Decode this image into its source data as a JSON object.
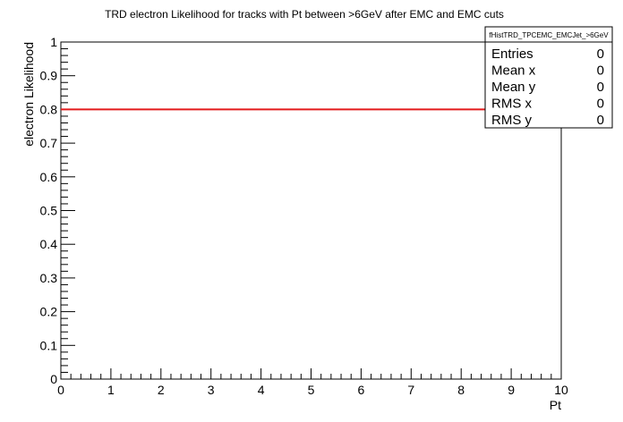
{
  "chart_data": {
    "type": "line",
    "title": "TRD electron Likelihood for tracks with Pt between >6GeV after EMC and EMC cuts",
    "xlabel": "Pt",
    "ylabel": "electron Likelihood",
    "xlim": [
      0,
      10
    ],
    "ylim": [
      0,
      1
    ],
    "x_ticks": [
      "0",
      "1",
      "2",
      "3",
      "4",
      "5",
      "6",
      "7",
      "8",
      "9",
      "10"
    ],
    "y_ticks": [
      "0",
      "0.1",
      "0.2",
      "0.3",
      "0.4",
      "0.5",
      "0.6",
      "0.7",
      "0.8",
      "0.9",
      "1"
    ],
    "grid": false,
    "series": [
      {
        "x": [
          0,
          10
        ],
        "y": [
          0.8,
          0.8
        ],
        "color": "#e31a1c"
      }
    ]
  },
  "stats_box": {
    "name": "fHistTRD_TPCEMC_EMCJet_>6GeV",
    "rows": [
      {
        "label": "Entries",
        "value": "0"
      },
      {
        "label": "Mean x",
        "value": "0"
      },
      {
        "label": "Mean y",
        "value": "0"
      },
      {
        "label": "RMS x",
        "value": "0"
      },
      {
        "label": "RMS y",
        "value": "0"
      }
    ]
  }
}
